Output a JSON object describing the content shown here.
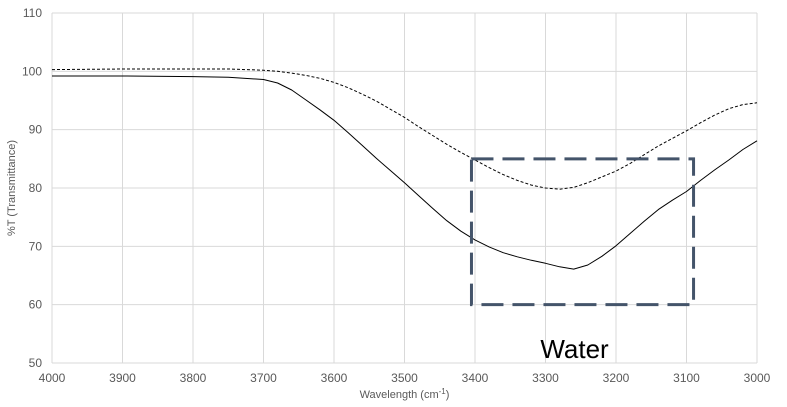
{
  "chart_data": {
    "type": "line",
    "xlabel": "Wavelength (cm",
    "xlabel_sup": "-1",
    "xlabel_close": ")",
    "ylabel": "%T (Transmittance)",
    "xlim": [
      4000,
      3000
    ],
    "ylim": [
      50,
      110
    ],
    "x_reversed": true,
    "x_ticks": [
      "4000",
      "3900",
      "3800",
      "3700",
      "3600",
      "3500",
      "3400",
      "3300",
      "3200",
      "3100",
      "3000"
    ],
    "y_ticks": [
      "50",
      "60",
      "70",
      "80",
      "90",
      "100",
      "110"
    ],
    "grid": true,
    "series": [
      {
        "style": "solid",
        "color": "#000000",
        "x": [
          4000,
          3900,
          3800,
          3750,
          3700,
          3680,
          3660,
          3640,
          3620,
          3600,
          3580,
          3560,
          3540,
          3520,
          3500,
          3480,
          3460,
          3440,
          3420,
          3400,
          3380,
          3360,
          3340,
          3320,
          3300,
          3280,
          3260,
          3240,
          3220,
          3200,
          3180,
          3160,
          3140,
          3120,
          3100,
          3080,
          3060,
          3040,
          3020,
          3000
        ],
        "y": [
          99.2,
          99.2,
          99.1,
          99.0,
          98.6,
          98.0,
          96.8,
          95.1,
          93.4,
          91.6,
          89.5,
          87.3,
          85.1,
          83.0,
          80.9,
          78.7,
          76.5,
          74.4,
          72.6,
          71.1,
          69.9,
          68.9,
          68.2,
          67.6,
          67.1,
          66.5,
          66.1,
          66.8,
          68.3,
          70.1,
          72.2,
          74.3,
          76.3,
          77.9,
          79.4,
          81.3,
          83.1,
          84.8,
          86.6,
          88.1
        ]
      },
      {
        "style": "dashed",
        "color": "#000000",
        "x": [
          4000,
          3900,
          3800,
          3750,
          3700,
          3680,
          3660,
          3640,
          3620,
          3600,
          3580,
          3560,
          3540,
          3520,
          3500,
          3480,
          3460,
          3440,
          3420,
          3400,
          3380,
          3360,
          3340,
          3320,
          3300,
          3280,
          3260,
          3240,
          3220,
          3200,
          3180,
          3160,
          3140,
          3120,
          3100,
          3080,
          3060,
          3040,
          3020,
          3000
        ],
        "y": [
          100.3,
          100.4,
          100.4,
          100.4,
          100.2,
          100.0,
          99.7,
          99.3,
          98.8,
          98.1,
          97.2,
          96.1,
          94.9,
          93.5,
          92.1,
          90.5,
          89.0,
          87.5,
          86.1,
          84.8,
          83.5,
          82.3,
          81.3,
          80.5,
          80.0,
          79.8,
          80.1,
          80.9,
          81.9,
          82.9,
          84.2,
          85.7,
          87.2,
          88.5,
          89.8,
          91.2,
          92.5,
          93.6,
          94.3,
          94.6
        ]
      }
    ],
    "annotation": {
      "text": "Water",
      "box_x": [
        3405,
        3090
      ],
      "box_y": [
        60,
        85
      ],
      "color": "#44546a"
    }
  }
}
